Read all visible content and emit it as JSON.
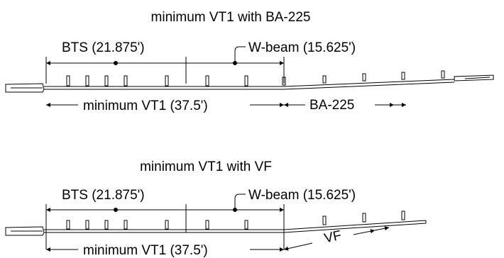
{
  "diagrams": [
    {
      "title": "minimum VT1 with BA-225",
      "bts_label": "BTS (21.875')",
      "wbeam_label": "W-beam (15.625')",
      "min_label": "minimum VT1 (37.5')",
      "terminal_label": "BA-225"
    },
    {
      "title": "minimum VT1 with VF",
      "bts_label": "BTS (21.875')",
      "wbeam_label": "W-beam (15.625')",
      "min_label": "minimum VT1 (37.5')",
      "terminal_label": "VF"
    }
  ],
  "colors": {
    "ink": "#000000",
    "background": "#ffffff"
  }
}
